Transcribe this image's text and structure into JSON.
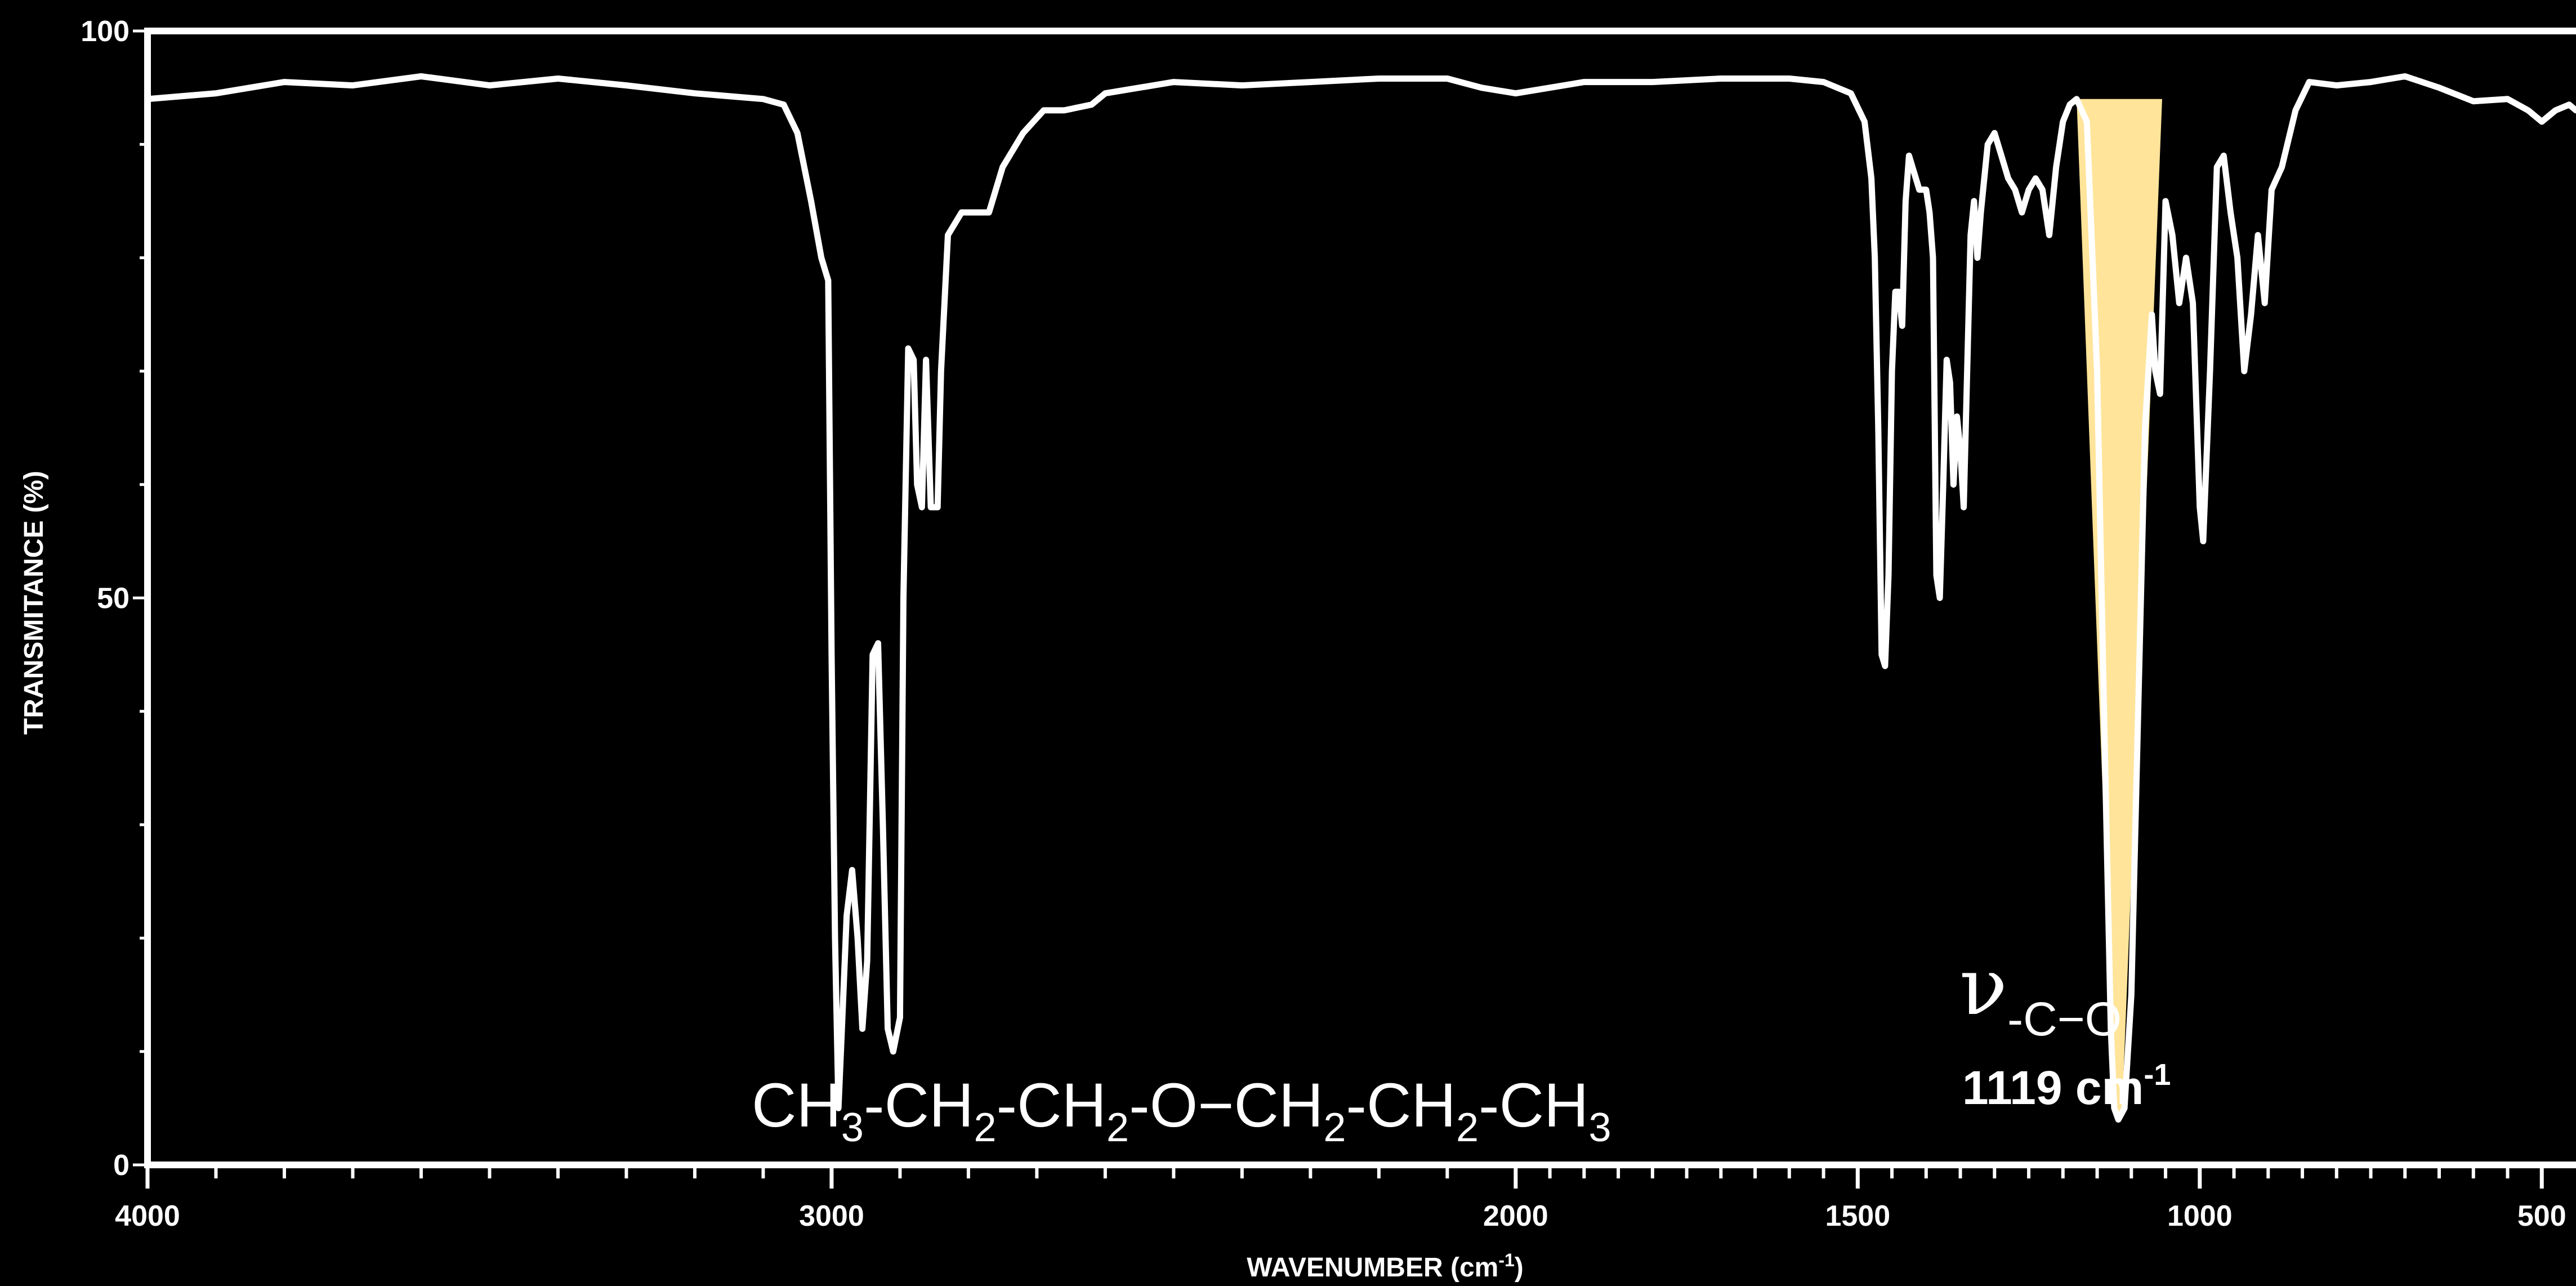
{
  "chart_data": {
    "type": "line",
    "title": "",
    "xlabel": "WAVENUMBER (cm",
    "xlabel_sup": "-1",
    "xlabel_close": ")",
    "ylabel": "TRANSMITANCE (%)",
    "xlim": [
      4000,
      450
    ],
    "ylim": [
      0,
      100
    ],
    "x_axis_reversed": true,
    "grid": false,
    "x_tick_labels": [
      {
        "value": 4000,
        "label": "4000"
      },
      {
        "value": 3000,
        "label": "3000"
      },
      {
        "value": 2000,
        "label": "2000"
      },
      {
        "value": 1500,
        "label": "1500"
      },
      {
        "value": 1000,
        "label": "1000"
      },
      {
        "value": 500,
        "label": "500"
      }
    ],
    "y_tick_labels": [
      {
        "value": 100,
        "label": "100"
      },
      {
        "value": 50,
        "label": "50"
      },
      {
        "value": 0,
        "label": "0"
      }
    ],
    "series": [
      {
        "color": "#ffffff",
        "points": [
          [
            4000,
            94
          ],
          [
            3900,
            94.5
          ],
          [
            3800,
            95.5
          ],
          [
            3700,
            95.2
          ],
          [
            3600,
            96
          ],
          [
            3500,
            95.2
          ],
          [
            3400,
            95.8
          ],
          [
            3300,
            95.2
          ],
          [
            3200,
            94.5
          ],
          [
            3100,
            94
          ],
          [
            3070,
            93.5
          ],
          [
            3050,
            91
          ],
          [
            3030,
            85
          ],
          [
            3015,
            80
          ],
          [
            3005,
            78
          ],
          [
            3000,
            45
          ],
          [
            2995,
            20
          ],
          [
            2990,
            5
          ],
          [
            2985,
            12
          ],
          [
            2978,
            22
          ],
          [
            2970,
            26
          ],
          [
            2962,
            20
          ],
          [
            2955,
            12
          ],
          [
            2948,
            18
          ],
          [
            2940,
            45
          ],
          [
            2932,
            46
          ],
          [
            2925,
            30
          ],
          [
            2918,
            12
          ],
          [
            2910,
            10
          ],
          [
            2900,
            13
          ],
          [
            2895,
            50
          ],
          [
            2888,
            72
          ],
          [
            2880,
            71
          ],
          [
            2875,
            60
          ],
          [
            2868,
            58
          ],
          [
            2862,
            71
          ],
          [
            2855,
            58
          ],
          [
            2845,
            58
          ],
          [
            2840,
            70
          ],
          [
            2830,
            82
          ],
          [
            2810,
            84
          ],
          [
            2790,
            84
          ],
          [
            2770,
            84
          ],
          [
            2750,
            88
          ],
          [
            2720,
            91
          ],
          [
            2690,
            93
          ],
          [
            2660,
            93
          ],
          [
            2620,
            93.5
          ],
          [
            2600,
            94.5
          ],
          [
            2500,
            95.5
          ],
          [
            2400,
            95.2
          ],
          [
            2300,
            95.5
          ],
          [
            2200,
            95.8
          ],
          [
            2100,
            95.8
          ],
          [
            2050,
            95
          ],
          [
            2000,
            94.5
          ],
          [
            1900,
            95.5
          ],
          [
            1800,
            95.5
          ],
          [
            1700,
            95.8
          ],
          [
            1600,
            95.8
          ],
          [
            1550,
            95.5
          ],
          [
            1510,
            94.5
          ],
          [
            1490,
            92
          ],
          [
            1480,
            87
          ],
          [
            1475,
            80
          ],
          [
            1470,
            65
          ],
          [
            1465,
            45
          ],
          [
            1460,
            44
          ],
          [
            1455,
            52
          ],
          [
            1450,
            70
          ],
          [
            1445,
            77
          ],
          [
            1440,
            77
          ],
          [
            1435,
            74
          ],
          [
            1430,
            85
          ],
          [
            1425,
            89
          ],
          [
            1420,
            88
          ],
          [
            1410,
            86
          ],
          [
            1400,
            86
          ],
          [
            1395,
            84
          ],
          [
            1390,
            80
          ],
          [
            1385,
            52
          ],
          [
            1380,
            50
          ],
          [
            1375,
            60
          ],
          [
            1370,
            71
          ],
          [
            1365,
            69
          ],
          [
            1360,
            60
          ],
          [
            1355,
            66
          ],
          [
            1350,
            63
          ],
          [
            1345,
            58
          ],
          [
            1340,
            70
          ],
          [
            1335,
            82
          ],
          [
            1330,
            85
          ],
          [
            1325,
            80
          ],
          [
            1320,
            84
          ],
          [
            1310,
            90
          ],
          [
            1300,
            91
          ],
          [
            1290,
            89
          ],
          [
            1280,
            87
          ],
          [
            1270,
            86
          ],
          [
            1260,
            84
          ],
          [
            1250,
            86
          ],
          [
            1240,
            87
          ],
          [
            1230,
            86
          ],
          [
            1220,
            82
          ],
          [
            1210,
            88
          ],
          [
            1200,
            92
          ],
          [
            1190,
            93.5
          ],
          [
            1180,
            94
          ],
          [
            1165,
            92
          ],
          [
            1150,
            70
          ],
          [
            1140,
            40
          ],
          [
            1130,
            12
          ],
          [
            1125,
            5
          ],
          [
            1119,
            4
          ],
          [
            1110,
            5
          ],
          [
            1100,
            15
          ],
          [
            1090,
            40
          ],
          [
            1080,
            65
          ],
          [
            1070,
            75
          ],
          [
            1065,
            70
          ],
          [
            1058,
            68
          ],
          [
            1050,
            85
          ],
          [
            1040,
            82
          ],
          [
            1030,
            76
          ],
          [
            1020,
            80
          ],
          [
            1010,
            76
          ],
          [
            1000,
            58
          ],
          [
            995,
            55
          ],
          [
            985,
            70
          ],
          [
            975,
            88
          ],
          [
            965,
            89
          ],
          [
            955,
            84
          ],
          [
            945,
            80
          ],
          [
            935,
            70
          ],
          [
            925,
            75
          ],
          [
            915,
            82
          ],
          [
            905,
            76
          ],
          [
            895,
            86
          ],
          [
            880,
            88
          ],
          [
            860,
            93
          ],
          [
            840,
            95.5
          ],
          [
            800,
            95.2
          ],
          [
            750,
            95.5
          ],
          [
            700,
            96
          ],
          [
            650,
            95
          ],
          [
            600,
            93.8
          ],
          [
            550,
            94
          ],
          [
            520,
            93
          ],
          [
            500,
            92
          ],
          [
            480,
            93
          ],
          [
            460,
            93.5
          ],
          [
            450,
            93
          ]
        ]
      }
    ],
    "shaded_region": {
      "color": "#ffe49a",
      "top_y": 94,
      "x_start": 1180,
      "x_end": 1055,
      "apex_x": 1119,
      "apex_y": 4
    },
    "annotations": {
      "formula_parts": [
        "CH",
        "3",
        "-CH",
        "2",
        "-CH",
        "2",
        "-O−CH",
        "2",
        "-CH",
        "2",
        "-CH",
        "3"
      ],
      "nu_symbol": "ν",
      "nu_subscript": "-C−O",
      "peak_label": "1119 cm",
      "peak_label_sup": "-1"
    }
  }
}
